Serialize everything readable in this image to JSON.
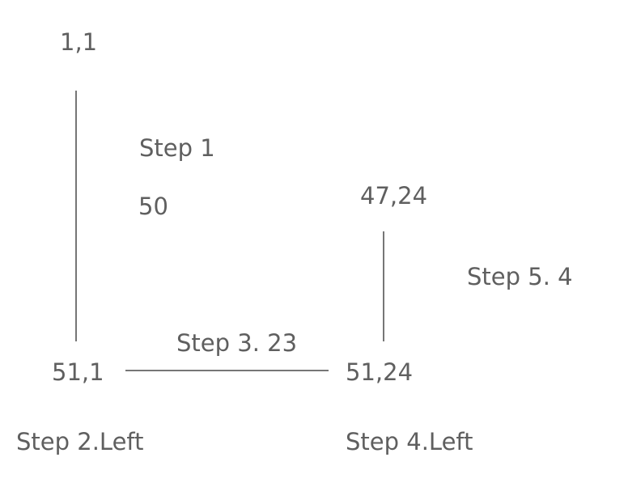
{
  "points": {
    "start": "1,1",
    "corner_left": "51,1",
    "corner_right": "51,24",
    "end": "47,24"
  },
  "steps": {
    "step1_label": "Step 1",
    "step1_value": "50",
    "step2": "Step 2.Left",
    "step3": "Step 3. 23",
    "step4": "Step 4.Left",
    "step5": "Step 5. 4"
  },
  "colors": {
    "text": "#5f5f5f",
    "line": "#767676",
    "background": "#ffffff"
  }
}
